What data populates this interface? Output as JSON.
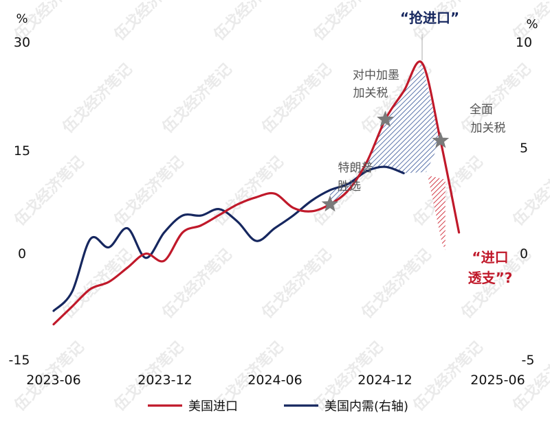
{
  "chart_data": {
    "type": "line",
    "x": [
      "2023-06",
      "2023-07",
      "2023-08",
      "2023-09",
      "2023-10",
      "2023-11",
      "2023-12",
      "2024-01",
      "2024-02",
      "2024-03",
      "2024-04",
      "2024-05",
      "2024-06",
      "2024-07",
      "2024-08",
      "2024-09",
      "2024-10",
      "2024-11",
      "2024-12",
      "2025-01",
      "2025-02",
      "2025-03",
      "2025-04",
      "2025-05",
      "2025-06"
    ],
    "x_tick_labels": [
      "2023-06",
      "2023-12",
      "2024-06",
      "2024-12",
      "2025-06"
    ],
    "series": [
      {
        "name": "美国进口",
        "axis": "left",
        "color": "#c0192a",
        "values": [
          -10,
          -7.5,
          -5,
          -4,
          -2,
          0,
          -1,
          3,
          4,
          5.5,
          7,
          8,
          8.5,
          6.5,
          6,
          7,
          9,
          13,
          19,
          23,
          27,
          16,
          3,
          null,
          null
        ]
      },
      {
        "name": "美国内需",
        "axis": "right",
        "color": "#16275f",
        "values": [
          -2.7,
          -1.8,
          0.7,
          0.3,
          1.2,
          -0.2,
          1.0,
          1.8,
          1.8,
          2.1,
          1.5,
          0.6,
          1.2,
          1.8,
          2.5,
          3.0,
          3.3,
          3.9,
          4.1,
          3.8,
          null,
          null,
          null,
          null,
          null
        ]
      }
    ],
    "y_left": {
      "unit": "%",
      "ticks": [
        "30",
        "15",
        "0",
        "-15"
      ],
      "ylim": [
        -15,
        30
      ]
    },
    "y_right": {
      "unit": "%",
      "ticks": [
        "10",
        "5",
        "0",
        "-5"
      ],
      "ylim": [
        -5,
        10
      ]
    },
    "annotations": [
      {
        "text": "“抢进口”"
      },
      {
        "lines": [
          "对中加墨",
          "加关税"
        ]
      },
      {
        "lines": [
          "全面",
          "加关税"
        ]
      },
      {
        "lines": [
          "特朗普",
          "胜选"
        ]
      },
      {
        "lines": [
          "“进口",
          "透支”?"
        ]
      }
    ],
    "legend": {
      "placement": "bottom",
      "items": [
        "美国进口",
        "美国内需(右轴)"
      ]
    },
    "grid": false
  },
  "watermark": "伍戈经济笔记"
}
